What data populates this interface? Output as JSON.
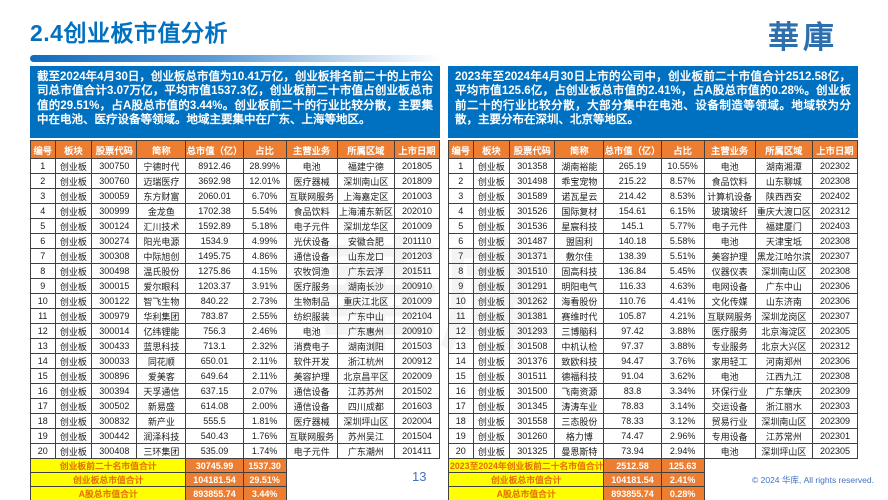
{
  "page": {
    "title": "2.4创业板市值分析",
    "logo": "華庫",
    "watermark": "華庫",
    "page_number": "13",
    "copyright": "© 2024 华库, All rights reserved."
  },
  "colors": {
    "accent_blue": "#0070C0",
    "header_orange": "#ED7D31",
    "footer_yellow": "#FFFF00",
    "footer_label_text": "#E36C0A",
    "footnote_blue": "#4472C4"
  },
  "left_panel": {
    "summary": "截至2024年4月30日，创业板总市值为10.41万亿，创业板排名前二十的上市公司总市值合计3.07万亿，平均市值1537.3亿，创业板前二十市值占创业板总市值的29.51%，占A股总市值的3.44%。创业板前二十的行业比较分散，主要集中在电池、医疗设备等领域。地域主要集中在广东、上海等地区。",
    "table": {
      "columns": [
        "编号",
        "板块",
        "股票代码",
        "简称",
        "总市值（亿）",
        "占比",
        "主营业务",
        "所属区域",
        "上市日期"
      ],
      "rows": [
        [
          "1",
          "创业板",
          "300750",
          "宁德时代",
          "8912.46",
          "28.99%",
          "电池",
          "福建宁德",
          "201805"
        ],
        [
          "2",
          "创业板",
          "300760",
          "迈瑞医疗",
          "3692.98",
          "12.01%",
          "医疗器械",
          "深圳南山区",
          "201809"
        ],
        [
          "3",
          "创业板",
          "300059",
          "东方财富",
          "2060.01",
          "6.70%",
          "互联网服务",
          "上海嘉定区",
          "201003"
        ],
        [
          "4",
          "创业板",
          "300999",
          "金龙鱼",
          "1702.38",
          "5.54%",
          "食品饮料",
          "上海浦东新区",
          "202010"
        ],
        [
          "5",
          "创业板",
          "300124",
          "汇川技术",
          "1592.89",
          "5.18%",
          "电子元件",
          "深圳龙华区",
          "201009"
        ],
        [
          "6",
          "创业板",
          "300274",
          "阳光电源",
          "1534.9",
          "4.99%",
          "光伏设备",
          "安徽合肥",
          "201110"
        ],
        [
          "7",
          "创业板",
          "300308",
          "中际旭创",
          "1495.75",
          "4.86%",
          "通信设备",
          "山东龙口",
          "201203"
        ],
        [
          "8",
          "创业板",
          "300498",
          "温氏股份",
          "1275.86",
          "4.15%",
          "农牧饲渔",
          "广东云浮",
          "201511"
        ],
        [
          "9",
          "创业板",
          "300015",
          "爱尔眼科",
          "1203.37",
          "3.91%",
          "医疗服务",
          "湖南长沙",
          "200910"
        ],
        [
          "10",
          "创业板",
          "300122",
          "智飞生物",
          "840.22",
          "2.73%",
          "生物制品",
          "重庆江北区",
          "201009"
        ],
        [
          "11",
          "创业板",
          "300979",
          "华利集团",
          "783.87",
          "2.55%",
          "纺织服装",
          "广东中山",
          "202104"
        ],
        [
          "12",
          "创业板",
          "300014",
          "亿纬锂能",
          "756.3",
          "2.46%",
          "电池",
          "广东惠州",
          "200910"
        ],
        [
          "13",
          "创业板",
          "300433",
          "蓝思科技",
          "713.1",
          "2.32%",
          "消费电子",
          "湖南浏阳",
          "201503"
        ],
        [
          "14",
          "创业板",
          "300033",
          "同花顺",
          "650.01",
          "2.11%",
          "软件开发",
          "浙江杭州",
          "200912"
        ],
        [
          "15",
          "创业板",
          "300896",
          "爱美客",
          "649.64",
          "2.11%",
          "美容护理",
          "北京昌平区",
          "202009"
        ],
        [
          "16",
          "创业板",
          "300394",
          "天孚通信",
          "637.15",
          "2.07%",
          "通信设备",
          "江苏苏州",
          "201502"
        ],
        [
          "17",
          "创业板",
          "300502",
          "新易盛",
          "614.08",
          "2.00%",
          "通信设备",
          "四川成都",
          "201603"
        ],
        [
          "18",
          "创业板",
          "300832",
          "新产业",
          "555.5",
          "1.81%",
          "医疗器械",
          "深圳坪山区",
          "202004"
        ],
        [
          "19",
          "创业板",
          "300442",
          "润泽科技",
          "540.43",
          "1.76%",
          "互联网服务",
          "苏州吴江",
          "201504"
        ],
        [
          "20",
          "创业板",
          "300408",
          "三环集团",
          "535.09",
          "1.74%",
          "电子元件",
          "广东潮州",
          "201411"
        ]
      ],
      "footer": [
        {
          "label": "创业板前二十名市值合计",
          "value1": "30745.99",
          "value2": "1537.30"
        },
        {
          "label": "创业板总市值合计",
          "value1": "104181.54",
          "value2": "29.51%"
        },
        {
          "label": "A股总市值合计",
          "value1": "893855.74",
          "value2": "3.44%"
        }
      ]
    }
  },
  "right_panel": {
    "summary": "2023年至2024年4月30日上市的公司中，创业板前二十市值合计2512.58亿，平均市值125.6亿，占创业板总市值的2.41%，占A股总市值的0.28%。创业板前二十的行业比较分散，大部分集中在电池、设备制造等领域。地域较为分散，主要分布在深圳、北京等地区。",
    "table": {
      "columns": [
        "编号",
        "板块",
        "股票代码",
        "简称",
        "总市值（亿）",
        "占比",
        "主营业务",
        "所属区域",
        "上市日期"
      ],
      "rows": [
        [
          "1",
          "创业板",
          "301358",
          "湖南裕能",
          "265.19",
          "10.55%",
          "电池",
          "湖南湘潭",
          "202302"
        ],
        [
          "2",
          "创业板",
          "301498",
          "乖宝宠物",
          "215.22",
          "8.57%",
          "食品饮料",
          "山东聊城",
          "202308"
        ],
        [
          "3",
          "创业板",
          "301589",
          "诺瓦星云",
          "214.42",
          "8.53%",
          "计算机设备",
          "陕西西安",
          "202402"
        ],
        [
          "4",
          "创业板",
          "301526",
          "国际复材",
          "154.61",
          "6.15%",
          "玻璃玻纤",
          "重庆大渡口区",
          "202312"
        ],
        [
          "5",
          "创业板",
          "301536",
          "星宸科技",
          "145.1",
          "5.77%",
          "电子元件",
          "福建厦门",
          "202403"
        ],
        [
          "6",
          "创业板",
          "301487",
          "盟固利",
          "140.18",
          "5.58%",
          "电池",
          "天津宝坻",
          "202308"
        ],
        [
          "7",
          "创业板",
          "301371",
          "敷尔佳",
          "138.39",
          "5.51%",
          "美容护理",
          "黑龙江哈尔滨",
          "202307"
        ],
        [
          "8",
          "创业板",
          "301510",
          "固高科技",
          "136.84",
          "5.45%",
          "仪器仪表",
          "深圳南山区",
          "202308"
        ],
        [
          "9",
          "创业板",
          "301291",
          "明阳电气",
          "116.33",
          "4.63%",
          "电网设备",
          "广东中山",
          "202306"
        ],
        [
          "10",
          "创业板",
          "301262",
          "海看股份",
          "110.76",
          "4.41%",
          "文化传媒",
          "山东济南",
          "202306"
        ],
        [
          "11",
          "创业板",
          "301381",
          "赛维时代",
          "105.87",
          "4.21%",
          "互联网服务",
          "深圳龙岗区",
          "202307"
        ],
        [
          "12",
          "创业板",
          "301293",
          "三博脑科",
          "97.42",
          "3.88%",
          "医疗服务",
          "北京海淀区",
          "202305"
        ],
        [
          "13",
          "创业板",
          "301508",
          "中机认检",
          "97.37",
          "3.88%",
          "专业服务",
          "北京大兴区",
          "202312"
        ],
        [
          "14",
          "创业板",
          "301376",
          "致欧科技",
          "94.47",
          "3.76%",
          "家用轻工",
          "河南郑州",
          "202306"
        ],
        [
          "15",
          "创业板",
          "301511",
          "德福科技",
          "91.04",
          "3.62%",
          "电池",
          "江西九江",
          "202308"
        ],
        [
          "16",
          "创业板",
          "301500",
          "飞南资源",
          "83.8",
          "3.34%",
          "环保行业",
          "广东肇庆",
          "202309"
        ],
        [
          "17",
          "创业板",
          "301345",
          "涛涛车业",
          "78.83",
          "3.14%",
          "交运设备",
          "浙江丽水",
          "202303"
        ],
        [
          "18",
          "创业板",
          "301558",
          "三态股份",
          "78.33",
          "3.12%",
          "贸易行业",
          "深圳南山区",
          "202309"
        ],
        [
          "19",
          "创业板",
          "301260",
          "格力博",
          "74.47",
          "2.96%",
          "专用设备",
          "江苏常州",
          "202301"
        ],
        [
          "20",
          "创业板",
          "301325",
          "曼恩斯特",
          "73.94",
          "2.94%",
          "电池",
          "深圳坪山区",
          "202305"
        ]
      ],
      "footer": [
        {
          "label": "2023至2024年创业板前二十名市值合计",
          "value1": "2512.58",
          "value2": "125.63"
        },
        {
          "label": "创业板总市值合计",
          "value1": "104181.54",
          "value2": "2.41%"
        },
        {
          "label": "A股总市值合计",
          "value1": "893855.74",
          "value2": "0.28%"
        }
      ]
    }
  }
}
